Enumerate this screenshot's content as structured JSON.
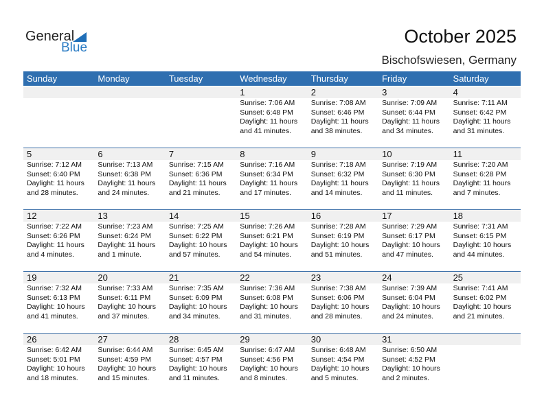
{
  "logo": {
    "line1": "General",
    "line2": "Blue"
  },
  "title": "October 2025",
  "location": "Bischofswiesen, Germany",
  "colors": {
    "header": "#2f6fb0",
    "band": "#f0f0f0"
  },
  "days": [
    "Sunday",
    "Monday",
    "Tuesday",
    "Wednesday",
    "Thursday",
    "Friday",
    "Saturday"
  ],
  "first_weekday": 3,
  "cells": [
    {
      "day": "1",
      "sunrise": "Sunrise: 7:06 AM",
      "sunset": "Sunset: 6:48 PM",
      "daylight1": "Daylight: 11 hours",
      "daylight2": "and 41 minutes."
    },
    {
      "day": "2",
      "sunrise": "Sunrise: 7:08 AM",
      "sunset": "Sunset: 6:46 PM",
      "daylight1": "Daylight: 11 hours",
      "daylight2": "and 38 minutes."
    },
    {
      "day": "3",
      "sunrise": "Sunrise: 7:09 AM",
      "sunset": "Sunset: 6:44 PM",
      "daylight1": "Daylight: 11 hours",
      "daylight2": "and 34 minutes."
    },
    {
      "day": "4",
      "sunrise": "Sunrise: 7:11 AM",
      "sunset": "Sunset: 6:42 PM",
      "daylight1": "Daylight: 11 hours",
      "daylight2": "and 31 minutes."
    },
    {
      "day": "5",
      "sunrise": "Sunrise: 7:12 AM",
      "sunset": "Sunset: 6:40 PM",
      "daylight1": "Daylight: 11 hours",
      "daylight2": "and 28 minutes."
    },
    {
      "day": "6",
      "sunrise": "Sunrise: 7:13 AM",
      "sunset": "Sunset: 6:38 PM",
      "daylight1": "Daylight: 11 hours",
      "daylight2": "and 24 minutes."
    },
    {
      "day": "7",
      "sunrise": "Sunrise: 7:15 AM",
      "sunset": "Sunset: 6:36 PM",
      "daylight1": "Daylight: 11 hours",
      "daylight2": "and 21 minutes."
    },
    {
      "day": "8",
      "sunrise": "Sunrise: 7:16 AM",
      "sunset": "Sunset: 6:34 PM",
      "daylight1": "Daylight: 11 hours",
      "daylight2": "and 17 minutes."
    },
    {
      "day": "9",
      "sunrise": "Sunrise: 7:18 AM",
      "sunset": "Sunset: 6:32 PM",
      "daylight1": "Daylight: 11 hours",
      "daylight2": "and 14 minutes."
    },
    {
      "day": "10",
      "sunrise": "Sunrise: 7:19 AM",
      "sunset": "Sunset: 6:30 PM",
      "daylight1": "Daylight: 11 hours",
      "daylight2": "and 11 minutes."
    },
    {
      "day": "11",
      "sunrise": "Sunrise: 7:20 AM",
      "sunset": "Sunset: 6:28 PM",
      "daylight1": "Daylight: 11 hours",
      "daylight2": "and 7 minutes."
    },
    {
      "day": "12",
      "sunrise": "Sunrise: 7:22 AM",
      "sunset": "Sunset: 6:26 PM",
      "daylight1": "Daylight: 11 hours",
      "daylight2": "and 4 minutes."
    },
    {
      "day": "13",
      "sunrise": "Sunrise: 7:23 AM",
      "sunset": "Sunset: 6:24 PM",
      "daylight1": "Daylight: 11 hours",
      "daylight2": "and 1 minute."
    },
    {
      "day": "14",
      "sunrise": "Sunrise: 7:25 AM",
      "sunset": "Sunset: 6:22 PM",
      "daylight1": "Daylight: 10 hours",
      "daylight2": "and 57 minutes."
    },
    {
      "day": "15",
      "sunrise": "Sunrise: 7:26 AM",
      "sunset": "Sunset: 6:21 PM",
      "daylight1": "Daylight: 10 hours",
      "daylight2": "and 54 minutes."
    },
    {
      "day": "16",
      "sunrise": "Sunrise: 7:28 AM",
      "sunset": "Sunset: 6:19 PM",
      "daylight1": "Daylight: 10 hours",
      "daylight2": "and 51 minutes."
    },
    {
      "day": "17",
      "sunrise": "Sunrise: 7:29 AM",
      "sunset": "Sunset: 6:17 PM",
      "daylight1": "Daylight: 10 hours",
      "daylight2": "and 47 minutes."
    },
    {
      "day": "18",
      "sunrise": "Sunrise: 7:31 AM",
      "sunset": "Sunset: 6:15 PM",
      "daylight1": "Daylight: 10 hours",
      "daylight2": "and 44 minutes."
    },
    {
      "day": "19",
      "sunrise": "Sunrise: 7:32 AM",
      "sunset": "Sunset: 6:13 PM",
      "daylight1": "Daylight: 10 hours",
      "daylight2": "and 41 minutes."
    },
    {
      "day": "20",
      "sunrise": "Sunrise: 7:33 AM",
      "sunset": "Sunset: 6:11 PM",
      "daylight1": "Daylight: 10 hours",
      "daylight2": "and 37 minutes."
    },
    {
      "day": "21",
      "sunrise": "Sunrise: 7:35 AM",
      "sunset": "Sunset: 6:09 PM",
      "daylight1": "Daylight: 10 hours",
      "daylight2": "and 34 minutes."
    },
    {
      "day": "22",
      "sunrise": "Sunrise: 7:36 AM",
      "sunset": "Sunset: 6:08 PM",
      "daylight1": "Daylight: 10 hours",
      "daylight2": "and 31 minutes."
    },
    {
      "day": "23",
      "sunrise": "Sunrise: 7:38 AM",
      "sunset": "Sunset: 6:06 PM",
      "daylight1": "Daylight: 10 hours",
      "daylight2": "and 28 minutes."
    },
    {
      "day": "24",
      "sunrise": "Sunrise: 7:39 AM",
      "sunset": "Sunset: 6:04 PM",
      "daylight1": "Daylight: 10 hours",
      "daylight2": "and 24 minutes."
    },
    {
      "day": "25",
      "sunrise": "Sunrise: 7:41 AM",
      "sunset": "Sunset: 6:02 PM",
      "daylight1": "Daylight: 10 hours",
      "daylight2": "and 21 minutes."
    },
    {
      "day": "26",
      "sunrise": "Sunrise: 6:42 AM",
      "sunset": "Sunset: 5:01 PM",
      "daylight1": "Daylight: 10 hours",
      "daylight2": "and 18 minutes."
    },
    {
      "day": "27",
      "sunrise": "Sunrise: 6:44 AM",
      "sunset": "Sunset: 4:59 PM",
      "daylight1": "Daylight: 10 hours",
      "daylight2": "and 15 minutes."
    },
    {
      "day": "28",
      "sunrise": "Sunrise: 6:45 AM",
      "sunset": "Sunset: 4:57 PM",
      "daylight1": "Daylight: 10 hours",
      "daylight2": "and 11 minutes."
    },
    {
      "day": "29",
      "sunrise": "Sunrise: 6:47 AM",
      "sunset": "Sunset: 4:56 PM",
      "daylight1": "Daylight: 10 hours",
      "daylight2": "and 8 minutes."
    },
    {
      "day": "30",
      "sunrise": "Sunrise: 6:48 AM",
      "sunset": "Sunset: 4:54 PM",
      "daylight1": "Daylight: 10 hours",
      "daylight2": "and 5 minutes."
    },
    {
      "day": "31",
      "sunrise": "Sunrise: 6:50 AM",
      "sunset": "Sunset: 4:52 PM",
      "daylight1": "Daylight: 10 hours",
      "daylight2": "and 2 minutes."
    }
  ]
}
